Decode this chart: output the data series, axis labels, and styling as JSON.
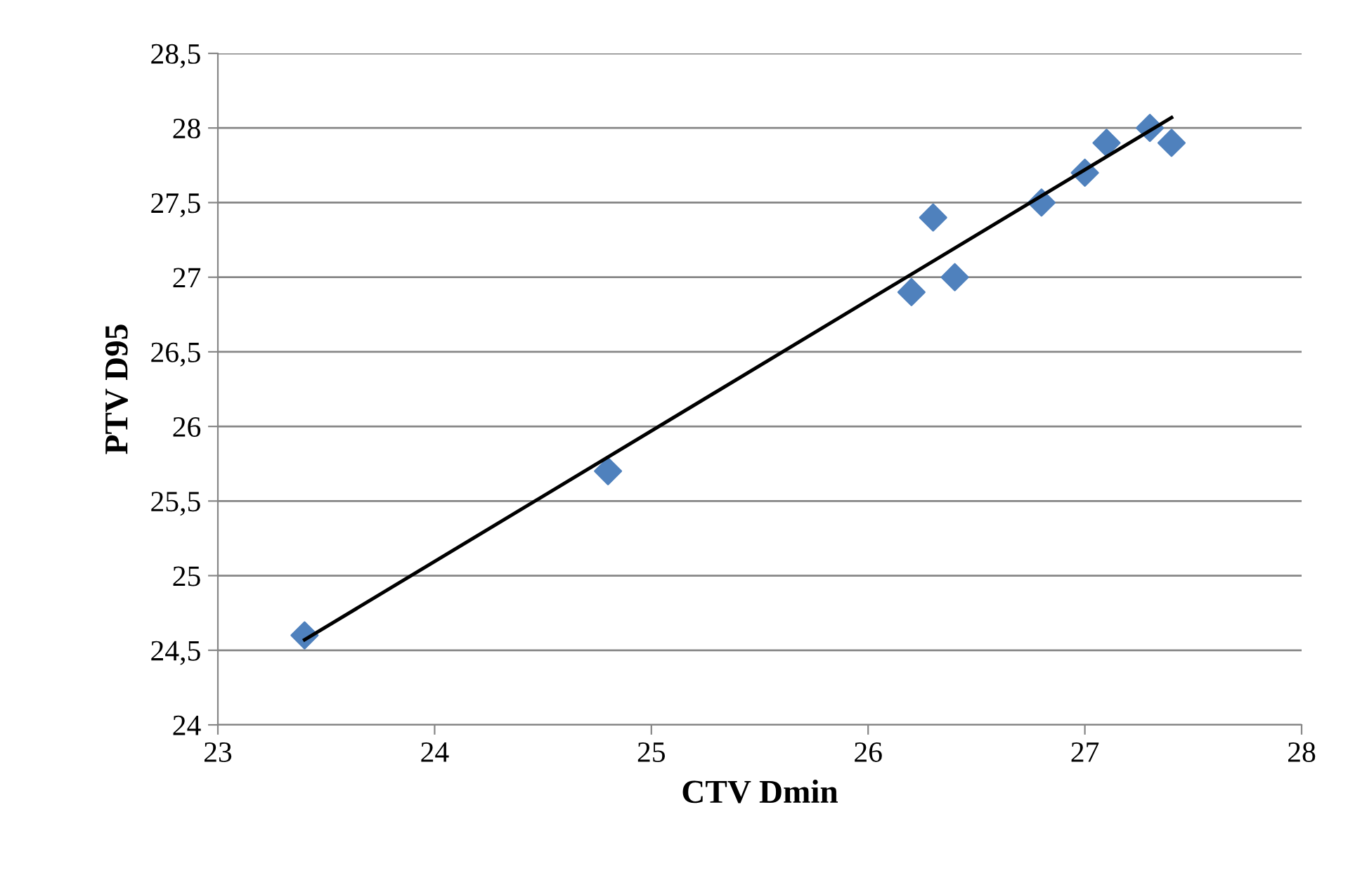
{
  "chart_data": {
    "type": "scatter",
    "xlabel": "CTV Dmin",
    "ylabel": "PTV D95",
    "series": [
      {
        "color": "#4f81bd",
        "marker": "diamond",
        "x": [
          23.4,
          24.8,
          26.2,
          26.3,
          26.4,
          26.8,
          27.0,
          27.1,
          27.3,
          27.4
        ],
        "values": [
          24.6,
          25.7,
          26.9,
          27.4,
          27.0,
          27.5,
          27.7,
          27.9,
          28.0,
          27.9
        ]
      },
      {
        "type": "line",
        "color": "#000000",
        "marker": "none",
        "x": [
          23.4,
          27.4
        ],
        "values": [
          24.57,
          28.07
        ]
      }
    ],
    "xlim": [
      23,
      28
    ],
    "xticks": [
      23,
      24,
      25,
      26,
      27,
      28
    ],
    "ylim": [
      24,
      28.5
    ],
    "yticks": [
      24,
      {
        "value": 24.5,
        "label": "24,5"
      },
      25,
      {
        "value": 25.5,
        "label": "25,5"
      },
      26,
      {
        "value": 26.5,
        "label": "26,5"
      },
      27,
      {
        "value": 27.5,
        "label": "27,5"
      },
      28,
      {
        "value": 28.5,
        "label": "28,5"
      }
    ],
    "grid": "y",
    "legend": false
  }
}
